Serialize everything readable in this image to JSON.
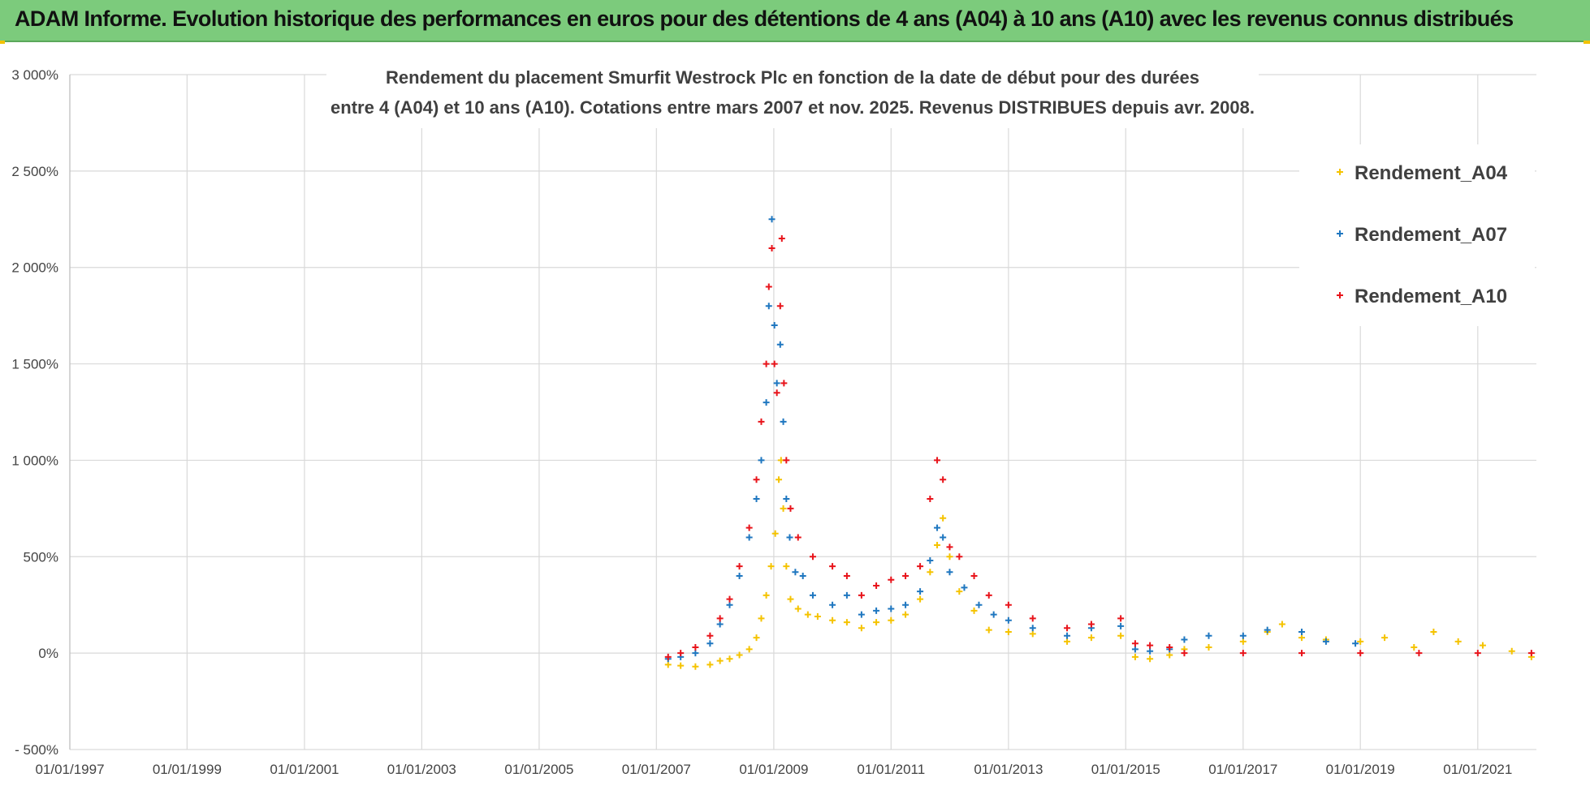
{
  "banner": {
    "title": "ADAM Informe. Evolution historique des performances en euros pour des détentions de 4 ans (A04) à 10 ans (A10) avec les revenus connus distribués",
    "background": "#7ccb7c"
  },
  "chart_data": {
    "type": "scatter",
    "title_lines": [
      "Rendement du placement Smurfit Westrock Plc en fonction de la date de début pour des durées",
      "entre 4 (A04) et 10 ans (A10). Cotations entre mars 2007 et nov. 2025. Revenus DISTRIBUES depuis avr. 2008."
    ],
    "xlabel": "",
    "ylabel": "",
    "x_ticks": [
      "01/01/1997",
      "01/01/1999",
      "01/01/2001",
      "01/01/2003",
      "01/01/2005",
      "01/01/2007",
      "01/01/2009",
      "01/01/2011",
      "01/01/2013",
      "01/01/2015",
      "01/01/2017",
      "01/01/2019",
      "01/01/2021"
    ],
    "y_ticks": [
      "- 500%",
      "0%",
      "500%",
      "1 000%",
      "1 500%",
      "2 000%",
      "2 500%",
      "3 000%"
    ],
    "xlim": [
      "1997-01-01",
      "2022-01-01"
    ],
    "ylim": [
      -500,
      3000
    ],
    "grid": true,
    "marker": "+",
    "legend_position": "top-right",
    "series": [
      {
        "name": "Rendement_A04",
        "color": "#f5c300",
        "points": [
          [
            "2007-03-15",
            -60
          ],
          [
            "2007-06-01",
            -65
          ],
          [
            "2007-09-01",
            -70
          ],
          [
            "2007-12-01",
            -60
          ],
          [
            "2008-02-01",
            -40
          ],
          [
            "2008-04-01",
            -30
          ],
          [
            "2008-06-01",
            -10
          ],
          [
            "2008-08-01",
            20
          ],
          [
            "2008-09-15",
            80
          ],
          [
            "2008-10-15",
            180
          ],
          [
            "2008-11-15",
            300
          ],
          [
            "2008-12-15",
            450
          ],
          [
            "2009-01-10",
            620
          ],
          [
            "2009-02-01",
            900
          ],
          [
            "2009-02-15",
            1000
          ],
          [
            "2009-03-01",
            750
          ],
          [
            "2009-03-20",
            450
          ],
          [
            "2009-04-15",
            280
          ],
          [
            "2009-06-01",
            230
          ],
          [
            "2009-08-01",
            200
          ],
          [
            "2009-10-01",
            190
          ],
          [
            "2010-01-01",
            170
          ],
          [
            "2010-04-01",
            160
          ],
          [
            "2010-07-01",
            130
          ],
          [
            "2010-10-01",
            160
          ],
          [
            "2011-01-01",
            170
          ],
          [
            "2011-04-01",
            200
          ],
          [
            "2011-07-01",
            280
          ],
          [
            "2011-09-01",
            420
          ],
          [
            "2011-10-15",
            560
          ],
          [
            "2011-11-20",
            700
          ],
          [
            "2012-01-01",
            500
          ],
          [
            "2012-03-01",
            320
          ],
          [
            "2012-06-01",
            220
          ],
          [
            "2012-09-01",
            120
          ],
          [
            "2013-01-01",
            110
          ],
          [
            "2013-06-01",
            100
          ],
          [
            "2014-01-01",
            60
          ],
          [
            "2014-06-01",
            80
          ],
          [
            "2014-12-01",
            90
          ],
          [
            "2015-03-01",
            -20
          ],
          [
            "2015-06-01",
            -30
          ],
          [
            "2015-10-01",
            -10
          ],
          [
            "2016-01-01",
            20
          ],
          [
            "2016-06-01",
            30
          ],
          [
            "2017-01-01",
            60
          ],
          [
            "2017-06-01",
            110
          ],
          [
            "2017-09-01",
            150
          ],
          [
            "2018-01-01",
            80
          ],
          [
            "2018-06-01",
            70
          ],
          [
            "2019-01-01",
            60
          ],
          [
            "2019-06-01",
            80
          ],
          [
            "2019-12-01",
            30
          ],
          [
            "2020-04-01",
            110
          ],
          [
            "2020-09-01",
            60
          ],
          [
            "2021-02-01",
            40
          ],
          [
            "2021-08-01",
            10
          ],
          [
            "2021-12-01",
            -20
          ]
        ]
      },
      {
        "name": "Rendement_A07",
        "color": "#1f77c0",
        "points": [
          [
            "2007-03-15",
            -30
          ],
          [
            "2007-06-01",
            -20
          ],
          [
            "2007-09-01",
            0
          ],
          [
            "2007-12-01",
            50
          ],
          [
            "2008-02-01",
            150
          ],
          [
            "2008-04-01",
            250
          ],
          [
            "2008-06-01",
            400
          ],
          [
            "2008-08-01",
            600
          ],
          [
            "2008-09-15",
            800
          ],
          [
            "2008-10-15",
            1000
          ],
          [
            "2008-11-15",
            1300
          ],
          [
            "2008-12-01",
            1800
          ],
          [
            "2008-12-20",
            2250
          ],
          [
            "2009-01-05",
            1700
          ],
          [
            "2009-01-20",
            1400
          ],
          [
            "2009-02-10",
            1600
          ],
          [
            "2009-03-01",
            1200
          ],
          [
            "2009-03-20",
            800
          ],
          [
            "2009-04-10",
            600
          ],
          [
            "2009-05-15",
            420
          ],
          [
            "2009-07-01",
            400
          ],
          [
            "2009-09-01",
            300
          ],
          [
            "2010-01-01",
            250
          ],
          [
            "2010-04-01",
            300
          ],
          [
            "2010-07-01",
            200
          ],
          [
            "2010-10-01",
            220
          ],
          [
            "2011-01-01",
            230
          ],
          [
            "2011-04-01",
            250
          ],
          [
            "2011-07-01",
            320
          ],
          [
            "2011-09-01",
            480
          ],
          [
            "2011-10-15",
            650
          ],
          [
            "2011-11-20",
            600
          ],
          [
            "2012-01-01",
            420
          ],
          [
            "2012-04-01",
            340
          ],
          [
            "2012-07-01",
            250
          ],
          [
            "2012-10-01",
            200
          ],
          [
            "2013-01-01",
            170
          ],
          [
            "2013-06-01",
            130
          ],
          [
            "2014-01-01",
            90
          ],
          [
            "2014-06-01",
            130
          ],
          [
            "2014-12-01",
            140
          ],
          [
            "2015-03-01",
            20
          ],
          [
            "2015-06-01",
            10
          ],
          [
            "2015-10-01",
            20
          ],
          [
            "2016-01-01",
            70
          ],
          [
            "2016-06-01",
            90
          ],
          [
            "2017-01-01",
            90
          ],
          [
            "2017-06-01",
            120
          ],
          [
            "2018-01-01",
            110
          ],
          [
            "2018-06-01",
            60
          ],
          [
            "2018-12-01",
            50
          ]
        ]
      },
      {
        "name": "Rendement_A10",
        "color": "#e8141b",
        "points": [
          [
            "2007-03-15",
            -20
          ],
          [
            "2007-06-01",
            0
          ],
          [
            "2007-09-01",
            30
          ],
          [
            "2007-12-01",
            90
          ],
          [
            "2008-02-01",
            180
          ],
          [
            "2008-04-01",
            280
          ],
          [
            "2008-06-01",
            450
          ],
          [
            "2008-08-01",
            650
          ],
          [
            "2008-09-15",
            900
          ],
          [
            "2008-10-15",
            1200
          ],
          [
            "2008-11-15",
            1500
          ],
          [
            "2008-12-01",
            1900
          ],
          [
            "2008-12-20",
            2100
          ],
          [
            "2009-01-05",
            1500
          ],
          [
            "2009-01-20",
            1350
          ],
          [
            "2009-02-10",
            1800
          ],
          [
            "2009-02-20",
            2150
          ],
          [
            "2009-03-05",
            1400
          ],
          [
            "2009-03-20",
            1000
          ],
          [
            "2009-04-15",
            750
          ],
          [
            "2009-06-01",
            600
          ],
          [
            "2009-09-01",
            500
          ],
          [
            "2010-01-01",
            450
          ],
          [
            "2010-04-01",
            400
          ],
          [
            "2010-07-01",
            300
          ],
          [
            "2010-10-01",
            350
          ],
          [
            "2011-01-01",
            380
          ],
          [
            "2011-04-01",
            400
          ],
          [
            "2011-07-01",
            450
          ],
          [
            "2011-09-01",
            800
          ],
          [
            "2011-10-15",
            1000
          ],
          [
            "2011-11-20",
            900
          ],
          [
            "2012-01-01",
            550
          ],
          [
            "2012-03-01",
            500
          ],
          [
            "2012-06-01",
            400
          ],
          [
            "2012-09-01",
            300
          ],
          [
            "2013-01-01",
            250
          ],
          [
            "2013-06-01",
            180
          ],
          [
            "2014-01-01",
            130
          ],
          [
            "2014-06-01",
            150
          ],
          [
            "2014-12-01",
            180
          ],
          [
            "2015-03-01",
            50
          ],
          [
            "2015-06-01",
            40
          ],
          [
            "2015-10-01",
            30
          ],
          [
            "2016-01-01",
            0
          ],
          [
            "2017-01-01",
            0
          ],
          [
            "2018-01-01",
            0
          ],
          [
            "2019-01-01",
            0
          ],
          [
            "2020-01-01",
            0
          ],
          [
            "2021-01-01",
            0
          ],
          [
            "2021-12-01",
            0
          ]
        ]
      }
    ]
  }
}
